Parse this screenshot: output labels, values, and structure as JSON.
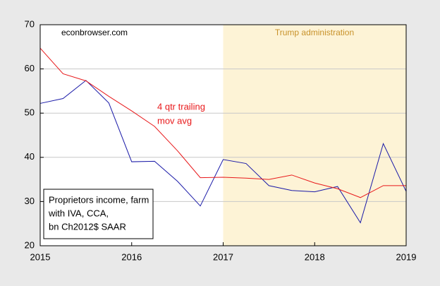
{
  "chart_data": {
    "type": "line",
    "x": [
      2015,
      2015.25,
      2015.5,
      2015.75,
      2016,
      2016.25,
      2016.5,
      2016.75,
      2017,
      2017.25,
      2017.5,
      2017.75,
      2018,
      2018.25,
      2018.5,
      2018.75,
      2019
    ],
    "series": [
      {
        "name": [
          "Proprietors income, farm",
          "with IVA, CCA,",
          "bn Ch2012$ SAAR"
        ],
        "color": "#1a1aa8",
        "values": [
          52.2,
          53.3,
          57.4,
          52.3,
          39.0,
          39.1,
          34.6,
          29.0,
          39.5,
          38.6,
          33.6,
          32.5,
          32.2,
          33.4,
          25.2,
          43.1,
          32.3
        ]
      },
      {
        "name": [
          "4 qtr trailing",
          "mov avg"
        ],
        "color": "#e8191b",
        "values": [
          64.7,
          58.9,
          57.3,
          53.8,
          50.5,
          47.0,
          41.5,
          35.4,
          35.5,
          35.3,
          35.0,
          36.0,
          34.2,
          32.9,
          30.9,
          33.6,
          33.6
        ]
      }
    ],
    "xlim": [
      2015,
      2019
    ],
    "xticks": [
      2015,
      2016,
      2017,
      2018,
      2019
    ],
    "ylim": [
      20,
      70
    ],
    "yticks": [
      20,
      30,
      40,
      50,
      60,
      70
    ],
    "grid": true,
    "shade": {
      "from": 2017,
      "to": 2019,
      "color": "#fdf3d6",
      "label": "Trump administration",
      "label_color": "#c8922a"
    },
    "source": "econbrowser.com"
  }
}
